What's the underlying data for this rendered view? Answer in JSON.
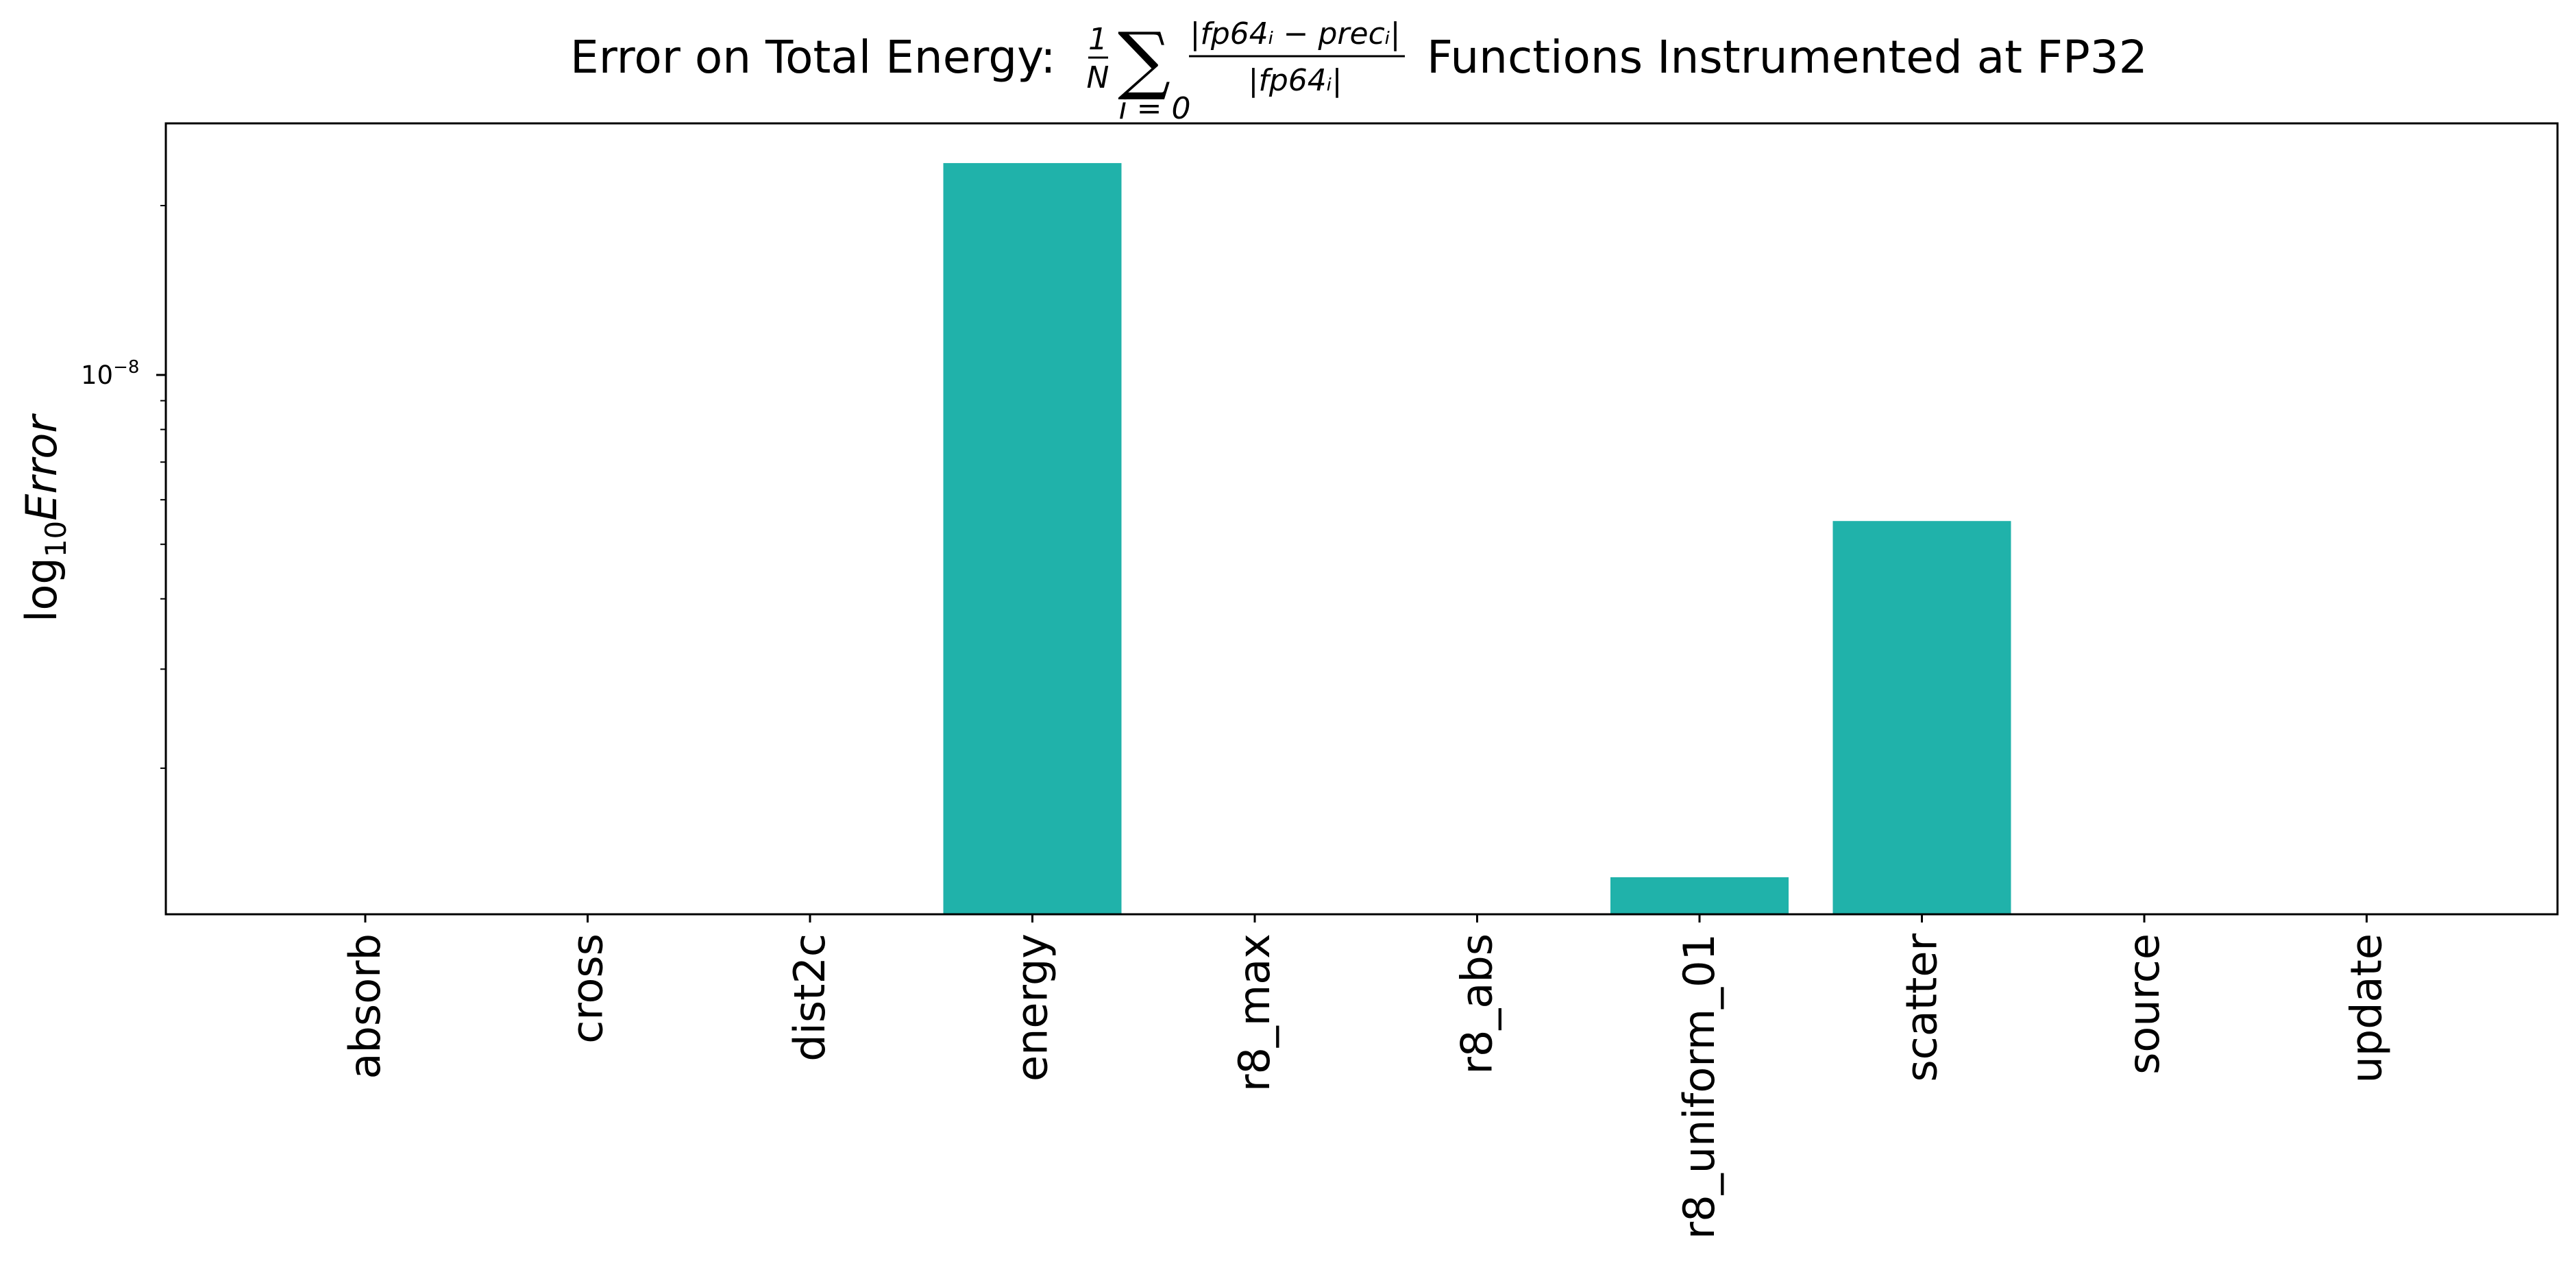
{
  "colors": {
    "bar": "#20b2aa",
    "axis": "#000000",
    "background": "#ffffff"
  },
  "chart_data": {
    "type": "bar",
    "title": "Error on Total Energy: (1/N) Σ_{i=0} |fp64_i − prec_i| / |fp64_i| Functions Instrumented at FP32",
    "title_parts": {
      "prefix": "Error on Total Energy:",
      "frac_num": "1",
      "frac_den": "N",
      "sum_symbol": "∑",
      "sum_sub": "i = 0",
      "inner_num": "|fp64ᵢ − precᵢ|",
      "inner_den": "|fp64ᵢ|",
      "suffix": "Functions Instrumented at FP32"
    },
    "xlabel": "",
    "ylabel": "log₁₀Error",
    "ylabel_parts": {
      "prefix": "log",
      "sub": "10",
      "var": "Error"
    },
    "yscale": "log",
    "ylim": [
      1.1e-09,
      2.8e-08
    ],
    "yticks": [
      {
        "value": 1e-08,
        "label_base": "10",
        "label_exp": "−8"
      }
    ],
    "grid": false,
    "legend": "none",
    "categories": [
      "absorb",
      "cross",
      "dist2c",
      "energy",
      "r8_max",
      "r8_abs",
      "r8_uniform_01",
      "scatter",
      "source",
      "update"
    ],
    "values": [
      0,
      0,
      0,
      2.38e-08,
      0,
      0,
      1.28e-09,
      5.5e-09,
      0,
      0
    ]
  }
}
